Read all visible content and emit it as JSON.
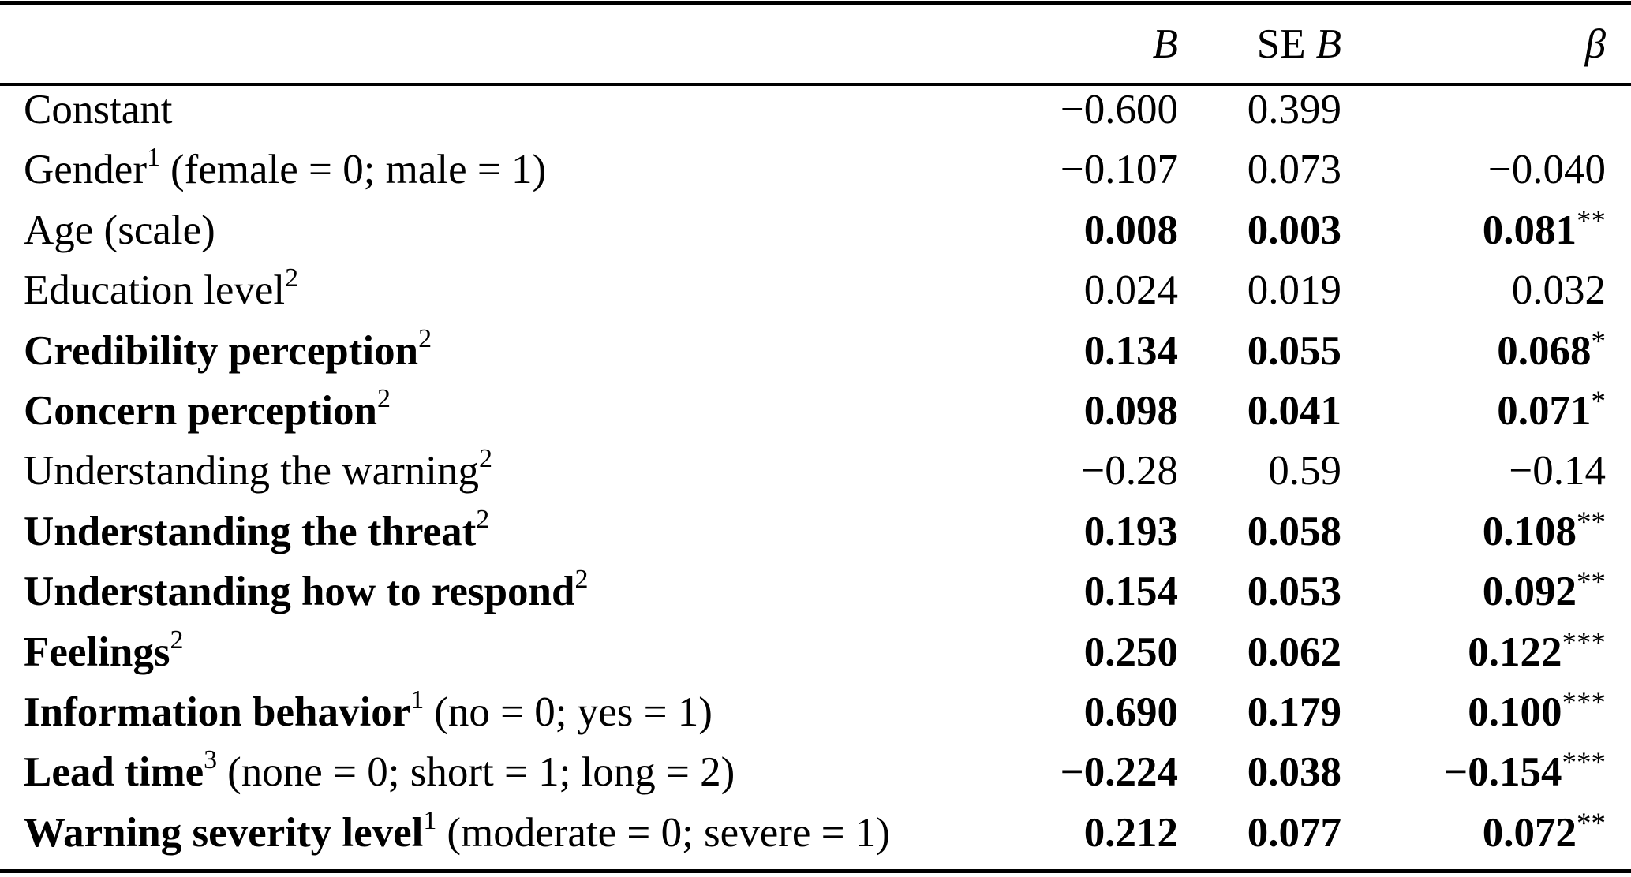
{
  "colors": {
    "text": "#000000",
    "background": "#ffffff",
    "rules": "#000000"
  },
  "header": {
    "b_label": "B",
    "se_prefix": "SE",
    "se_b_label": "B",
    "beta_label": "β"
  },
  "rows": [
    {
      "name": "Constant",
      "sup": "",
      "detail": "",
      "b": "−0.600",
      "se": "0.399",
      "beta": "",
      "stars": "",
      "bold_label": false,
      "bold_values": false
    },
    {
      "name": "Gender",
      "sup": "1",
      "detail": "(female = 0; male = 1)",
      "b": "−0.107",
      "se": "0.073",
      "beta": "−0.040",
      "stars": "",
      "bold_label": false,
      "bold_values": false
    },
    {
      "name": "Age (scale)",
      "sup": "",
      "detail": "",
      "b": "0.008",
      "se": "0.003",
      "beta": "0.081",
      "stars": "**",
      "bold_label": false,
      "bold_values": true
    },
    {
      "name": "Education level",
      "sup": "2",
      "detail": "",
      "b": "0.024",
      "se": "0.019",
      "beta": "0.032",
      "stars": "",
      "bold_label": false,
      "bold_values": false
    },
    {
      "name": "Credibility perception",
      "sup": "2",
      "detail": "",
      "b": "0.134",
      "se": "0.055",
      "beta": "0.068",
      "stars": "*",
      "bold_label": true,
      "bold_values": true
    },
    {
      "name": "Concern perception",
      "sup": "2",
      "detail": "",
      "b": "0.098",
      "se": "0.041",
      "beta": "0.071",
      "stars": "*",
      "bold_label": true,
      "bold_values": true
    },
    {
      "name": "Understanding the warning",
      "sup": "2",
      "detail": "",
      "b": "−0.28",
      "se": "0.59",
      "beta": "−0.14",
      "stars": "",
      "bold_label": false,
      "bold_values": false
    },
    {
      "name": "Understanding the threat",
      "sup": "2",
      "detail": "",
      "b": "0.193",
      "se": "0.058",
      "beta": "0.108",
      "stars": "**",
      "bold_label": true,
      "bold_values": true
    },
    {
      "name": "Understanding how to respond",
      "sup": "2",
      "detail": "",
      "b": "0.154",
      "se": "0.053",
      "beta": "0.092",
      "stars": "**",
      "bold_label": true,
      "bold_values": true
    },
    {
      "name": "Feelings",
      "sup": "2",
      "detail": "",
      "b": "0.250",
      "se": "0.062",
      "beta": "0.122",
      "stars": "***",
      "bold_label": true,
      "bold_values": true
    },
    {
      "name": "Information behavior",
      "sup": "1",
      "detail": "(no = 0; yes = 1)",
      "b": "0.690",
      "se": "0.179",
      "beta": "0.100",
      "stars": "***",
      "bold_label": true,
      "bold_values": true
    },
    {
      "name": "Lead time",
      "sup": "3",
      "detail": "(none = 0; short = 1; long = 2)",
      "b": "−0.224",
      "se": "0.038",
      "beta": "−0.154",
      "stars": "***",
      "bold_label": true,
      "bold_values": true
    },
    {
      "name": "Warning severity level",
      "sup": "1",
      "detail": "(moderate = 0; severe = 1)",
      "b": "0.212",
      "se": "0.077",
      "beta": "0.072",
      "stars": "**",
      "bold_label": true,
      "bold_values": true
    }
  ]
}
